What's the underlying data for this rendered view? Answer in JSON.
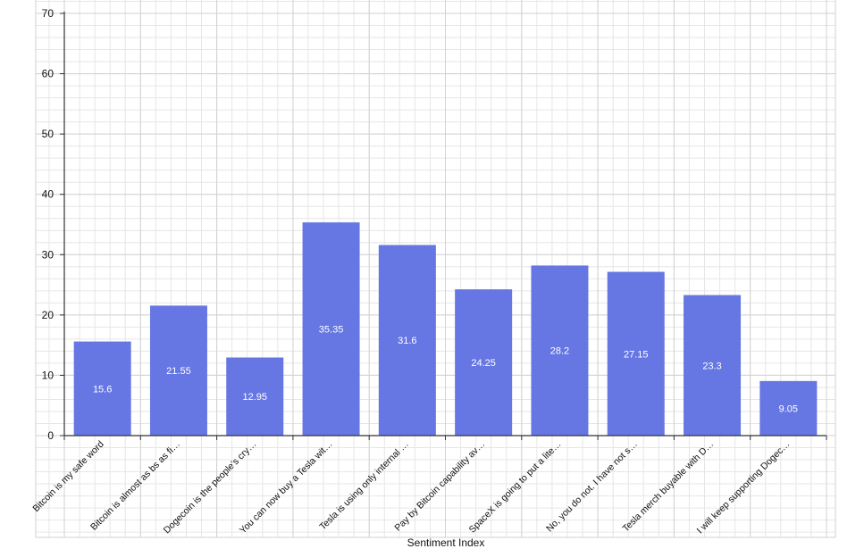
{
  "chart_data": {
    "type": "bar",
    "title": "",
    "xlabel": "Sentiment Index",
    "ylabel": "",
    "ylim": [
      0,
      70
    ],
    "yticks": [
      0,
      10,
      20,
      30,
      40,
      50,
      60,
      70
    ],
    "grid": true,
    "legend": "none",
    "bar_color": "#6677e3",
    "categories": [
      "Bitcoin is my safe word",
      "Bitcoin is almost as bs as fi…",
      "Dogecoin is the people’s cry…",
      "You can now buy a Tesla wit…",
      "Tesla is using only internal …",
      "Pay by Bitcoin capability av…",
      "SpaceX is going to put a lite…",
      "No, you do not. I have not s…",
      "Tesla merch buyable with D…",
      "I will keep supporting Dogec…"
    ],
    "values": [
      15.6,
      21.55,
      12.95,
      35.35,
      31.6,
      24.25,
      28.2,
      27.15,
      23.3,
      9.05
    ]
  }
}
